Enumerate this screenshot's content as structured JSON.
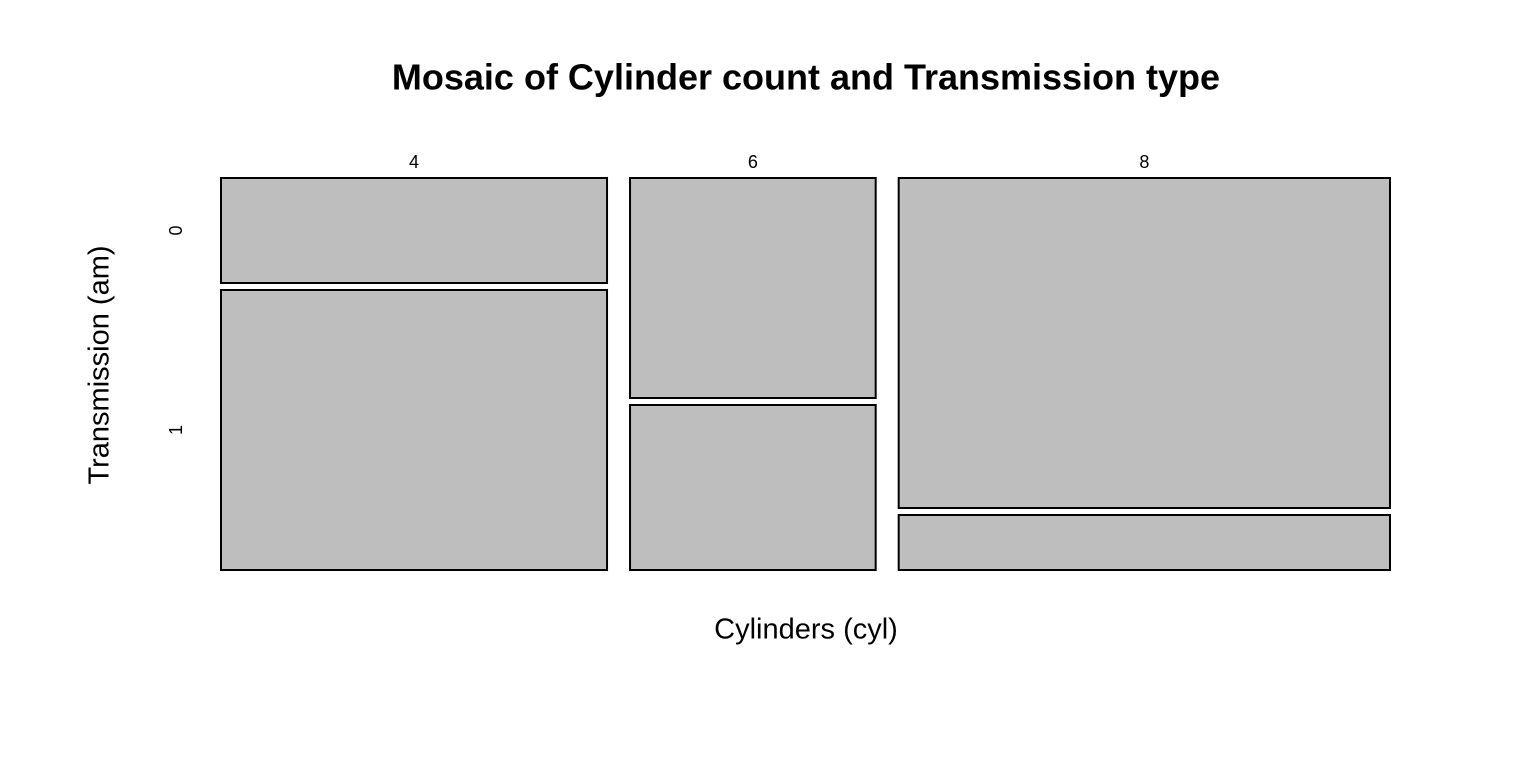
{
  "chart_data": {
    "type": "mosaic",
    "title": "Mosaic of Cylinder count and Transmission type",
    "x_label": "Cylinders (cyl)",
    "y_label": "Transmission (am)",
    "categories": [
      "4",
      "6",
      "8"
    ],
    "series": [
      {
        "name": "0",
        "color": "#bebebe",
        "values": [
          3,
          4,
          12
        ]
      },
      {
        "name": "1",
        "color": "#bebebe",
        "values": [
          8,
          3,
          2
        ]
      }
    ]
  }
}
